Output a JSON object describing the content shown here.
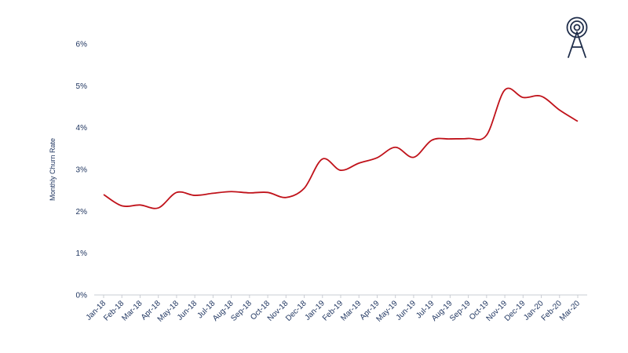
{
  "chart_data": {
    "type": "line",
    "ylabel": "Monthly Churn Rate",
    "xlabel": "",
    "ylim": [
      0,
      6
    ],
    "y_ticks": [
      "0%",
      "1%",
      "2%",
      "3%",
      "4%",
      "5%",
      "6%"
    ],
    "y_tick_values": [
      0,
      1,
      2,
      3,
      4,
      5,
      6
    ],
    "categories": [
      "Jan-18",
      "Feb-18",
      "Mar-18",
      "Apr-18",
      "May-18",
      "Jun-18",
      "Jul-18",
      "Aug-18",
      "Sep-18",
      "Oct-18",
      "Nov-18",
      "Dec-18",
      "Jan-19",
      "Feb-19",
      "Mar-19",
      "Apr-19",
      "May-19",
      "Jun-19",
      "Jul-19",
      "Aug-19",
      "Sep-19",
      "Oct-19",
      "Nov-19",
      "Dec-19",
      "Jan-20",
      "Feb-20",
      "Mar-20"
    ],
    "series": [
      {
        "color": "#c0121a",
        "values": [
          2.4,
          2.13,
          2.15,
          2.08,
          2.45,
          2.38,
          2.43,
          2.47,
          2.44,
          2.45,
          2.33,
          2.55,
          3.25,
          2.98,
          3.15,
          3.28,
          3.53,
          3.29,
          3.7,
          3.73,
          3.74,
          3.82,
          4.9,
          4.72,
          4.75,
          4.42,
          4.15
        ]
      }
    ],
    "grid": false,
    "legend": "none"
  },
  "logo": {
    "icon": "radio-tower-icon",
    "color": "#1f2d4a"
  }
}
